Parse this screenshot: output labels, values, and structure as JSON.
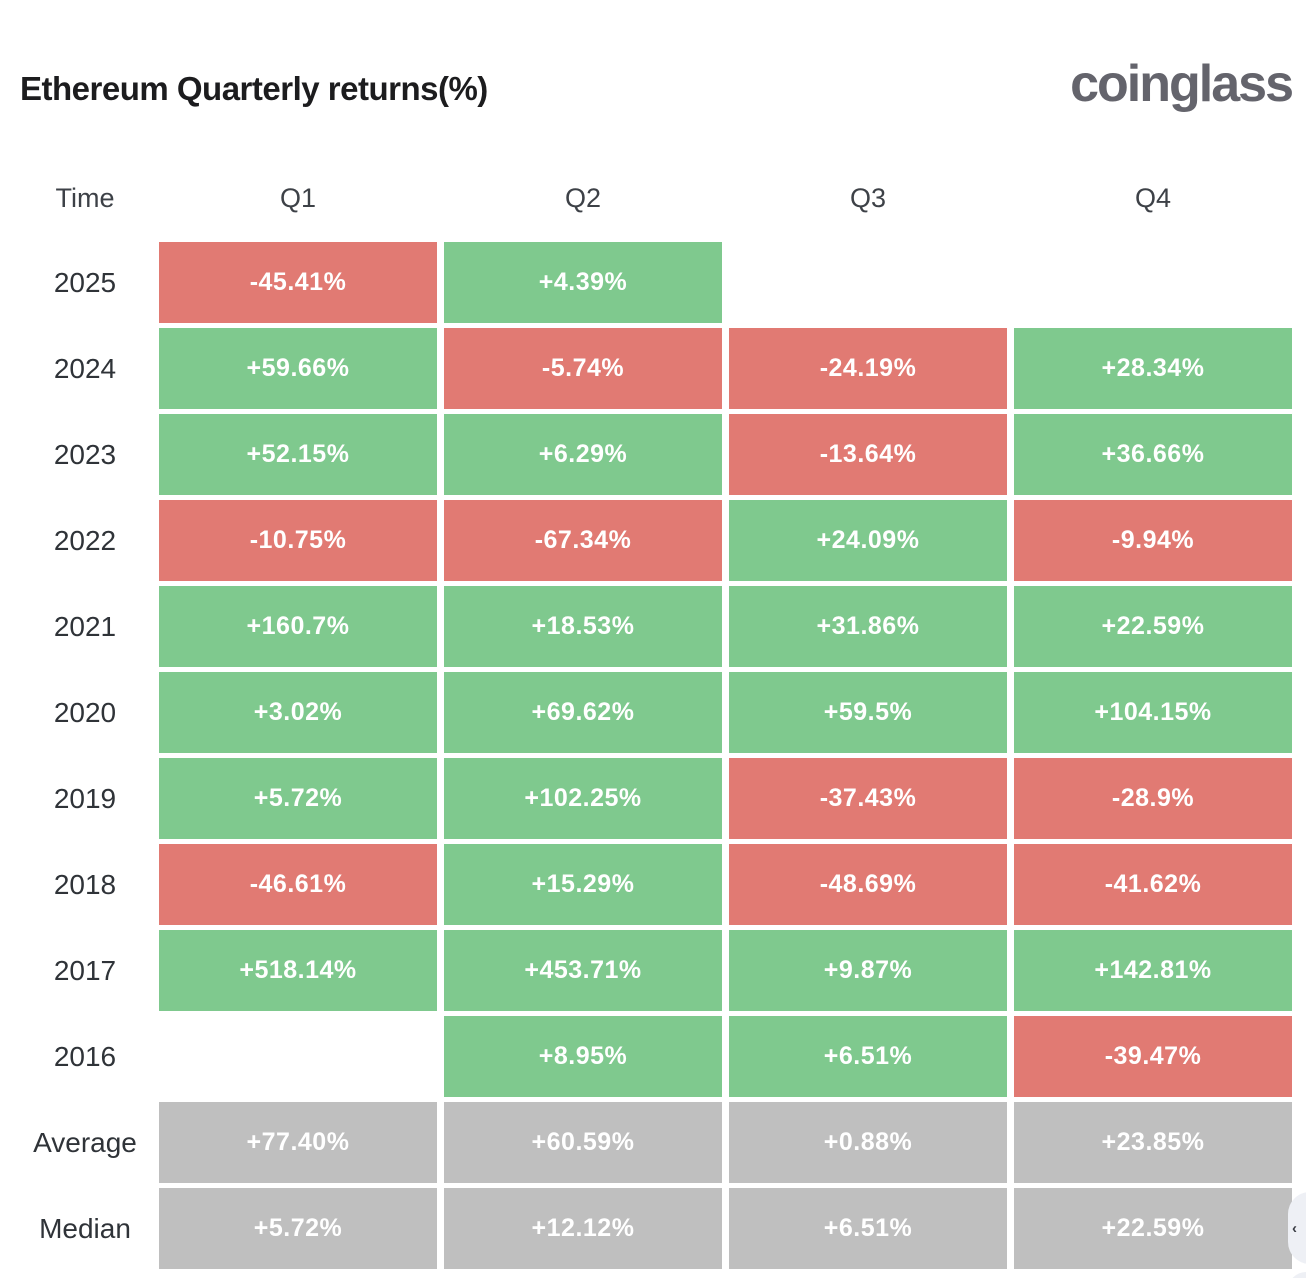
{
  "header": {
    "title": "Ethereum Quarterly returns(%)",
    "logo": "coinglass"
  },
  "table": {
    "time_label": "Time",
    "columns": [
      "Q1",
      "Q2",
      "Q3",
      "Q4"
    ],
    "rows": [
      {
        "label": "2025",
        "summary": false,
        "cells": [
          "-45.41%",
          "+4.39%",
          "",
          ""
        ]
      },
      {
        "label": "2024",
        "summary": false,
        "cells": [
          "+59.66%",
          "-5.74%",
          "-24.19%",
          "+28.34%"
        ]
      },
      {
        "label": "2023",
        "summary": false,
        "cells": [
          "+52.15%",
          "+6.29%",
          "-13.64%",
          "+36.66%"
        ]
      },
      {
        "label": "2022",
        "summary": false,
        "cells": [
          "-10.75%",
          "-67.34%",
          "+24.09%",
          "-9.94%"
        ]
      },
      {
        "label": "2021",
        "summary": false,
        "cells": [
          "+160.7%",
          "+18.53%",
          "+31.86%",
          "+22.59%"
        ]
      },
      {
        "label": "2020",
        "summary": false,
        "cells": [
          "+3.02%",
          "+69.62%",
          "+59.5%",
          "+104.15%"
        ]
      },
      {
        "label": "2019",
        "summary": false,
        "cells": [
          "+5.72%",
          "+102.25%",
          "-37.43%",
          "-28.9%"
        ]
      },
      {
        "label": "2018",
        "summary": false,
        "cells": [
          "-46.61%",
          "+15.29%",
          "-48.69%",
          "-41.62%"
        ]
      },
      {
        "label": "2017",
        "summary": false,
        "cells": [
          "+518.14%",
          "+453.71%",
          "+9.87%",
          "+142.81%"
        ]
      },
      {
        "label": "2016",
        "summary": false,
        "cells": [
          "",
          "+8.95%",
          "+6.51%",
          "-39.47%"
        ]
      },
      {
        "label": "Average",
        "summary": true,
        "cells": [
          "+77.40%",
          "+60.59%",
          "+0.88%",
          "+23.85%"
        ]
      },
      {
        "label": "Median",
        "summary": true,
        "cells": [
          "+5.72%",
          "+12.12%",
          "+6.51%",
          "+22.59%"
        ]
      }
    ]
  },
  "colors": {
    "positive": "#7fc98e",
    "negative": "#e17a73",
    "summary": "#bfbfbf",
    "cell_text": "#ffffff"
  },
  "floating_button": {
    "icon_glyph": "‹"
  },
  "chart_data": {
    "type": "heatmap",
    "title": "Ethereum Quarterly returns(%)",
    "source_brand": "coinglass",
    "columns": [
      "Q1",
      "Q2",
      "Q3",
      "Q4"
    ],
    "row_labels": [
      "2025",
      "2024",
      "2023",
      "2022",
      "2021",
      "2020",
      "2019",
      "2018",
      "2017",
      "2016",
      "Average",
      "Median"
    ],
    "series": [
      {
        "name": "2025",
        "values": [
          -45.41,
          4.39,
          null,
          null
        ]
      },
      {
        "name": "2024",
        "values": [
          59.66,
          -5.74,
          -24.19,
          28.34
        ]
      },
      {
        "name": "2023",
        "values": [
          52.15,
          6.29,
          -13.64,
          36.66
        ]
      },
      {
        "name": "2022",
        "values": [
          -10.75,
          -67.34,
          24.09,
          -9.94
        ]
      },
      {
        "name": "2021",
        "values": [
          160.7,
          18.53,
          31.86,
          22.59
        ]
      },
      {
        "name": "2020",
        "values": [
          3.02,
          69.62,
          59.5,
          104.15
        ]
      },
      {
        "name": "2019",
        "values": [
          5.72,
          102.25,
          -37.43,
          -28.9
        ]
      },
      {
        "name": "2018",
        "values": [
          -46.61,
          15.29,
          -48.69,
          -41.62
        ]
      },
      {
        "name": "2017",
        "values": [
          518.14,
          453.71,
          9.87,
          142.81
        ]
      },
      {
        "name": "2016",
        "values": [
          null,
          8.95,
          6.51,
          -39.47
        ]
      },
      {
        "name": "Average",
        "values": [
          77.4,
          60.59,
          0.88,
          23.85
        ]
      },
      {
        "name": "Median",
        "values": [
          5.72,
          12.12,
          6.51,
          22.59
        ]
      }
    ],
    "value_unit": "%",
    "color_rule": "green if positive, red if negative, gray for Average/Median summary rows",
    "legend": "none",
    "grid": "off"
  }
}
